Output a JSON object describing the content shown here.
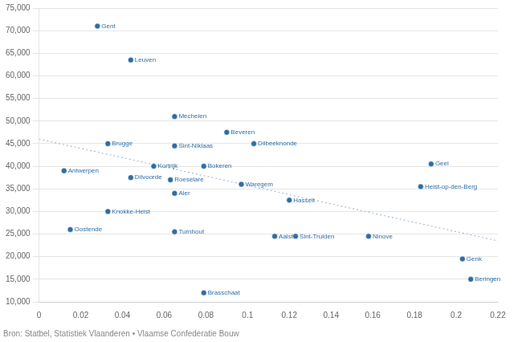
{
  "chart_data": {
    "type": "scatter",
    "annotations": [
      "Bron: Statbel, Statistiek Vlaanderen • Vlaamse Confederatie Bouw"
    ],
    "xlim": [
      0,
      0.22
    ],
    "ylim": [
      10000,
      75000
    ],
    "xticks": [
      0,
      0.02,
      0.04,
      0.06,
      0.08,
      0.1,
      0.12,
      0.14,
      0.16,
      0.18,
      0.2,
      0.22
    ],
    "yticks": [
      {
        "value": 10000,
        "label": "10,000"
      },
      {
        "value": 15000,
        "label": "15,000"
      },
      {
        "value": 20000,
        "label": "20,000"
      },
      {
        "value": 25000,
        "label": "25,000"
      },
      {
        "value": 30000,
        "label": "30,000"
      },
      {
        "value": 35000,
        "label": "35,000"
      },
      {
        "value": 40000,
        "label": "40,000"
      },
      {
        "value": 45000,
        "label": "45,000"
      },
      {
        "value": 50000,
        "label": "50,000"
      },
      {
        "value": 55000,
        "label": "55,000"
      },
      {
        "value": 60000,
        "label": "60,000"
      },
      {
        "value": 65000,
        "label": "65,000"
      },
      {
        "value": 70000,
        "label": "70,000"
      },
      {
        "value": 75000,
        "label": "75,000"
      }
    ],
    "grid": "y",
    "series": [
      {
        "type": "scatter",
        "color": "#2e6da4",
        "marker": "circle",
        "labels": [
          "Gent",
          "Leuven",
          "Mechelen",
          "Beveren",
          "Dilbeeknonde",
          "Brugge",
          "Sint-Niklaas",
          "Antwerpen",
          "Kortrijk",
          "Bokeren",
          "Dilvoorde",
          "Roeselare",
          "Waregem",
          "Geel",
          "Heist-op-den-Berg",
          "Aler",
          "Hasselt",
          "Knokke-Heist",
          "Oostende",
          "Turnhout",
          "Aalst",
          "Sint-Truiden",
          "Ninove",
          "Genk",
          "Beringen",
          "Brasschaat"
        ],
        "x": [
          0.028,
          0.044,
          0.065,
          0.09,
          0.103,
          0.033,
          0.065,
          0.012,
          0.055,
          0.079,
          0.044,
          0.063,
          0.097,
          0.188,
          0.183,
          0.065,
          0.12,
          0.033,
          0.015,
          0.065,
          0.113,
          0.123,
          0.158,
          0.203,
          0.207,
          0.079
        ],
        "values": [
          71000,
          63500,
          51000,
          47500,
          45000,
          45000,
          44500,
          39000,
          40000,
          40000,
          37500,
          37000,
          36000,
          40500,
          35500,
          34000,
          32500,
          30000,
          26000,
          25500,
          24500,
          24500,
          24500,
          19500,
          15000,
          12000
        ]
      },
      {
        "type": "line",
        "color": "#a8bfd4",
        "line_style": "dotted",
        "x": [
          0.0,
          0.22
        ],
        "values": [
          46000,
          23500
        ]
      }
    ]
  }
}
